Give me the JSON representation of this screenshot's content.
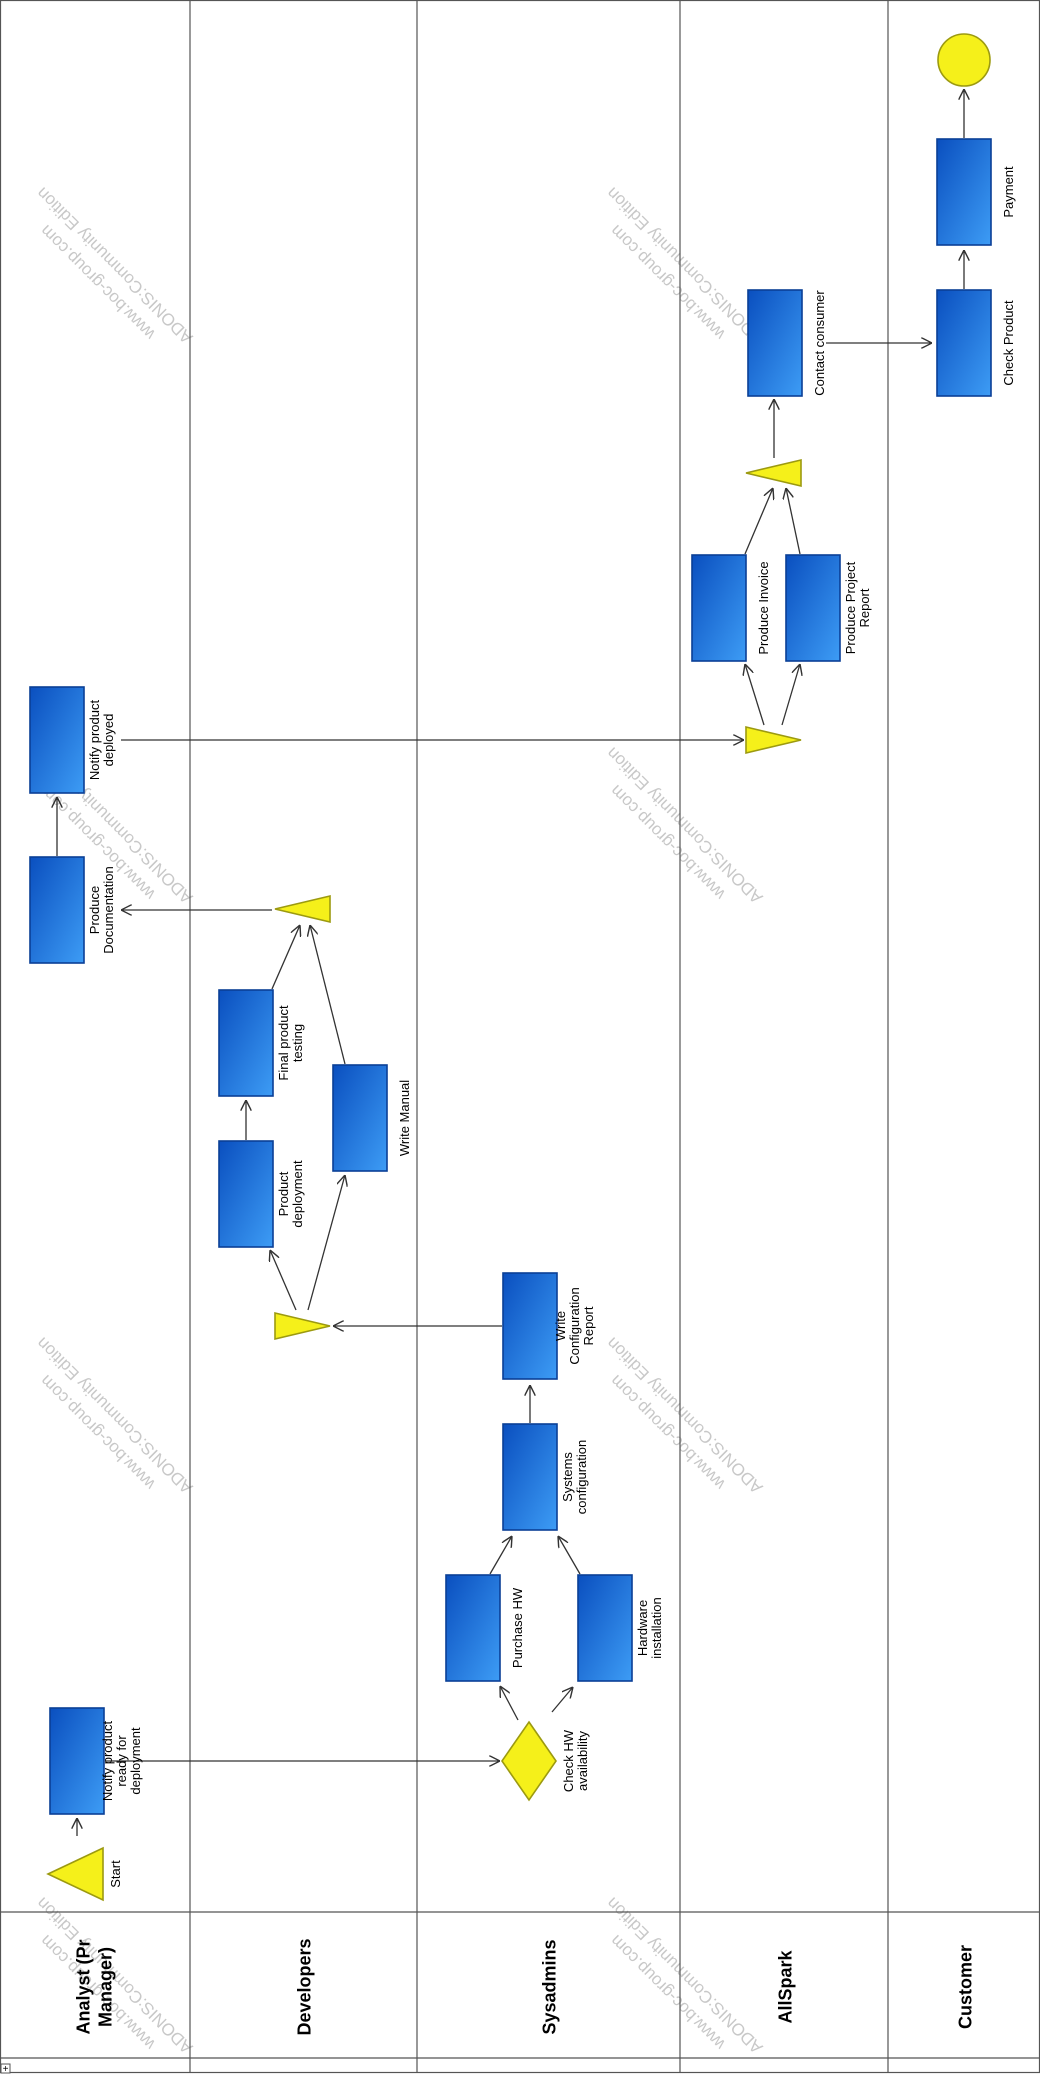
{
  "lanes": [
    {
      "id": "analyst",
      "label": [
        "Analyst (Pr",
        "Manager)"
      ]
    },
    {
      "id": "developers",
      "label": [
        "Developers"
      ]
    },
    {
      "id": "sysadmins",
      "label": [
        "Sysadmins"
      ]
    },
    {
      "id": "allspark",
      "label": [
        "AllSpark"
      ]
    },
    {
      "id": "customer",
      "label": [
        "Customer"
      ]
    }
  ],
  "start_event": {
    "label": [
      "Start"
    ]
  },
  "tasks": [
    {
      "id": "notify-ready",
      "label": [
        "Notify product",
        "ready for",
        "deployment"
      ]
    },
    {
      "id": "purchase-hw",
      "label": [
        "Purchase HW"
      ]
    },
    {
      "id": "hw-install",
      "label": [
        "Hardware",
        "installation"
      ]
    },
    {
      "id": "sys-config",
      "label": [
        "Systems",
        "configuration"
      ]
    },
    {
      "id": "write-config",
      "label": [
        "Write",
        "Configuration",
        "Report"
      ]
    },
    {
      "id": "product-deploy",
      "label": [
        "Product",
        "deployment"
      ]
    },
    {
      "id": "final-testing",
      "label": [
        "Final product",
        "testing"
      ]
    },
    {
      "id": "write-manual",
      "label": [
        "Write Manual"
      ]
    },
    {
      "id": "produce-doc",
      "label": [
        "Produce",
        "Documentation"
      ]
    },
    {
      "id": "notify-deployed",
      "label": [
        "Notify product",
        "deployed"
      ]
    },
    {
      "id": "produce-invoice",
      "label": [
        "Produce Invoice"
      ]
    },
    {
      "id": "produce-report",
      "label": [
        "Produce Project",
        "Report"
      ]
    },
    {
      "id": "contact-consumer",
      "label": [
        "Contact consumer"
      ]
    },
    {
      "id": "check-product",
      "label": [
        "Check Product"
      ]
    },
    {
      "id": "payment",
      "label": [
        "Payment"
      ]
    }
  ],
  "decision": {
    "label": [
      "Check HW",
      "availability"
    ]
  },
  "watermark": {
    "line1": "www.boc-group.com",
    "line2": "ADONIS:Community Edition"
  },
  "expand_marker": "+"
}
